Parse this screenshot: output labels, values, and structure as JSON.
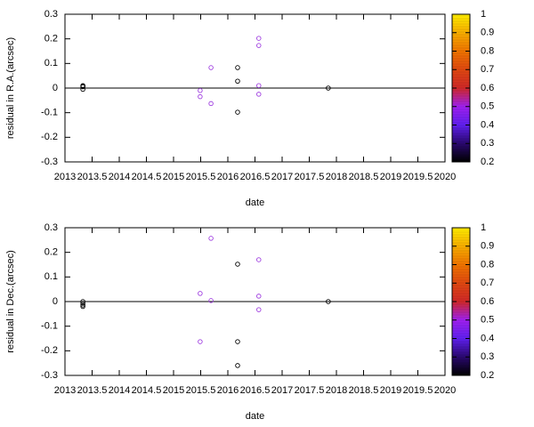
{
  "chart_data": [
    {
      "type": "scatter",
      "xlabel": "date",
      "ylabel": "residual in R.A.(arcsec)",
      "x": [
        2013.33,
        2013.33,
        2013.33,
        2013.33,
        2015.49,
        2015.49,
        2015.69,
        2015.69,
        2016.18,
        2016.18,
        2016.18,
        2016.57,
        2016.57,
        2016.57,
        2016.57,
        2017.85
      ],
      "y": [
        0.01,
        0.008,
        0.005,
        -0.005,
        -0.01,
        -0.035,
        0.083,
        -0.063,
        0.083,
        0.028,
        -0.098,
        0.202,
        0.173,
        0.01,
        -0.025,
        0
      ],
      "colors": [
        "#000000",
        "#000000",
        "#000000",
        "#000000",
        "#a040e0",
        "#a040e0",
        "#a040e0",
        "#a040e0",
        "#000000",
        "#000000",
        "#000000",
        "#a040e0",
        "#a040e0",
        "#a040e0",
        "#a040e0",
        "#000000"
      ],
      "xlim": [
        2013,
        2020
      ],
      "xticks": [
        2013,
        2013.5,
        2014,
        2014.5,
        2015,
        2015.5,
        2016,
        2016.5,
        2017,
        2017.5,
        2018,
        2018.5,
        2019,
        2019.5,
        2020
      ],
      "ylim": [
        -0.3,
        0.3
      ],
      "yticks": [
        -0.3,
        -0.2,
        -0.1,
        0,
        0.1,
        0.2,
        0.3
      ],
      "cblim": [
        0.2,
        1
      ],
      "cbticks": [
        0.2,
        0.3,
        0.4,
        0.5,
        0.6,
        0.7,
        0.8,
        0.9,
        1
      ],
      "colormap": [
        "#000000",
        "#2a0870",
        "#6020f0",
        "#a020f0",
        "#d02828",
        "#e04810",
        "#f07400",
        "#f8ae00",
        "#ffee00"
      ]
    },
    {
      "type": "scatter",
      "xlabel": "date",
      "ylabel": "residual in Dec.(arcsec)",
      "x": [
        2013.33,
        2013.33,
        2013.33,
        2013.33,
        2015.49,
        2015.49,
        2015.69,
        2015.69,
        2016.18,
        2016.18,
        2016.18,
        2016.57,
        2016.57,
        2016.57,
        2017.85
      ],
      "y": [
        0,
        -0.007,
        -0.014,
        -0.02,
        0.033,
        -0.163,
        0.257,
        0.004,
        0.152,
        -0.163,
        -0.26,
        0.17,
        0.022,
        -0.033,
        0
      ],
      "colors": [
        "#000000",
        "#000000",
        "#000000",
        "#000000",
        "#a040e0",
        "#a040e0",
        "#a040e0",
        "#a040e0",
        "#000000",
        "#000000",
        "#000000",
        "#a040e0",
        "#a040e0",
        "#a040e0",
        "#000000"
      ],
      "xlim": [
        2013,
        2020
      ],
      "xticks": [
        2013,
        2013.5,
        2014,
        2014.5,
        2015,
        2015.5,
        2016,
        2016.5,
        2017,
        2017.5,
        2018,
        2018.5,
        2019,
        2019.5,
        2020
      ],
      "ylim": [
        -0.3,
        0.3
      ],
      "yticks": [
        -0.3,
        -0.2,
        -0.1,
        0,
        0.1,
        0.2,
        0.3
      ],
      "cblim": [
        0.2,
        1
      ],
      "cbticks": [
        0.2,
        0.3,
        0.4,
        0.5,
        0.6,
        0.7,
        0.8,
        0.9,
        1
      ],
      "colormap": [
        "#000000",
        "#2a0870",
        "#6020f0",
        "#a020f0",
        "#d02828",
        "#e04810",
        "#f07400",
        "#f8ae00",
        "#ffee00"
      ]
    }
  ]
}
